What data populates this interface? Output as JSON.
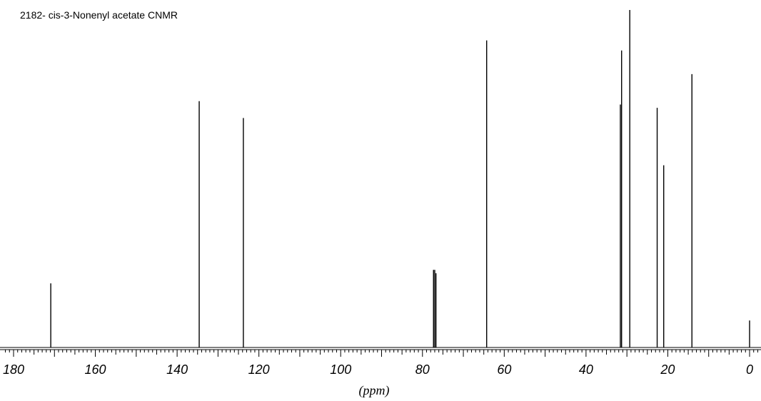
{
  "chart_data": {
    "type": "line",
    "title": "2182- cis-3-Nonenyl acetate CNMR",
    "xlabel": "(ppm)",
    "ylabel": "",
    "xlim": [
      180,
      0
    ],
    "x_reversed": true,
    "ylim": [
      0,
      1
    ],
    "x_ticks": [
      180,
      160,
      140,
      120,
      100,
      80,
      60,
      40,
      20,
      0
    ],
    "grid": false,
    "series": [
      {
        "peaks": [
          {
            "x": 170.9,
            "y": 0.19
          },
          {
            "x": 134.6,
            "y": 0.73
          },
          {
            "x": 123.8,
            "y": 0.68
          },
          {
            "x": 77.3,
            "y": 0.23
          },
          {
            "x": 77.0,
            "y": 0.23
          },
          {
            "x": 76.7,
            "y": 0.22
          },
          {
            "x": 64.3,
            "y": 0.91
          },
          {
            "x": 31.6,
            "y": 0.72
          },
          {
            "x": 31.3,
            "y": 0.88
          },
          {
            "x": 29.3,
            "y": 1.0
          },
          {
            "x": 22.6,
            "y": 0.71
          },
          {
            "x": 21.0,
            "y": 0.54
          },
          {
            "x": 14.1,
            "y": 0.81
          },
          {
            "x": 0.0,
            "y": 0.08
          }
        ]
      }
    ]
  }
}
